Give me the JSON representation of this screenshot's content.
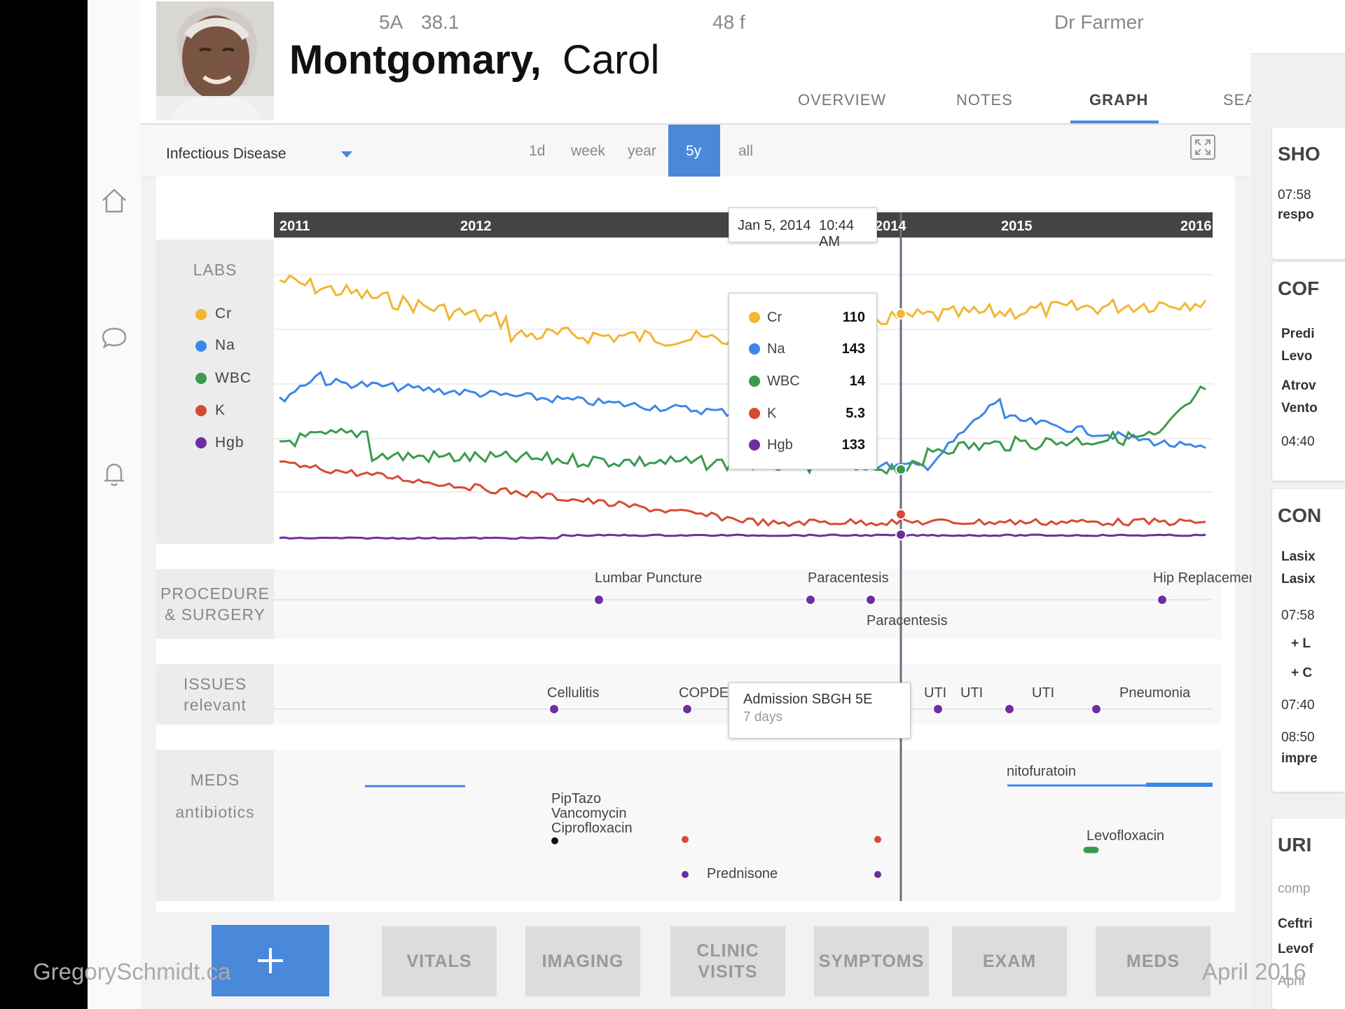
{
  "header": {
    "room": "5A",
    "temp": "38.1",
    "age_sex": "48 f",
    "doctor": "Dr Farmer",
    "last_name": "Montgomary,",
    "first_name": "Carol",
    "tabs": [
      "OVERVIEW",
      "NOTES",
      "GRAPH",
      "SEARCH"
    ],
    "active_tab": "GRAPH"
  },
  "toolbar": {
    "category": "Infectious Disease",
    "ranges": [
      "1d",
      "week",
      "year",
      "5y",
      "all"
    ],
    "active_range": "5y"
  },
  "timeline": {
    "years": [
      "2011",
      "2012",
      "2014",
      "2015",
      "2016"
    ],
    "cursor_label_date": "Jan 5, 2014",
    "cursor_label_time": "10:44 AM"
  },
  "labs": {
    "label": "LABS",
    "legend": [
      {
        "name": "Cr",
        "color": "#f2b632"
      },
      {
        "name": "Na",
        "color": "#3c86e8"
      },
      {
        "name": "WBC",
        "color": "#3a9a4d"
      },
      {
        "name": "K",
        "color": "#d64a32"
      },
      {
        "name": "Hgb",
        "color": "#6f2ea0"
      }
    ],
    "tooltip": [
      {
        "name": "Cr",
        "value": "110"
      },
      {
        "name": "Na",
        "value": "143"
      },
      {
        "name": "WBC",
        "value": "14"
      },
      {
        "name": "K",
        "value": "5.3"
      },
      {
        "name": "Hgb",
        "value": "133"
      }
    ]
  },
  "procedures": {
    "label_line1": "PROCEDURE",
    "label_line2": "& SURGERY",
    "events": [
      "Lumbar Puncture",
      "Paracentesis",
      "Paracentesis",
      "Hip Replacement"
    ]
  },
  "issues": {
    "label_line1": "ISSUES",
    "label_line2": "relevant",
    "events": [
      "Cellulitis",
      "COPDE",
      "UTI",
      "UTI",
      "UTI",
      "Pneumonia"
    ],
    "tooltip_title": "Admission SBGH  5E",
    "tooltip_sub": "7 days"
  },
  "meds": {
    "label_line1": "MEDS",
    "label_line2": "antibiotics",
    "combo": [
      "PipTazo",
      "Vancomycin",
      "Ciprofloxacin"
    ],
    "nitofuratoin": "nitofuratoin",
    "levofloxacin": "Levofloxacin",
    "prednisone": "Prednisone"
  },
  "bottom_buttons": [
    "VITALS",
    "IMAGING",
    "CLINIC VISITS",
    "SYMPTOMS",
    "EXAM",
    "MEDS"
  ],
  "right_panel": {
    "card1": {
      "title": "SHO",
      "lines": [
        "07:58",
        "respo"
      ]
    },
    "card2": {
      "title": "COF",
      "lines": [
        "Predi",
        "Levo",
        "Atrov",
        "Vento",
        "04:40"
      ]
    },
    "card3": {
      "title": "CON",
      "lines": [
        "Lasix",
        "Lasix",
        "07:58",
        "+ L",
        "+ C",
        "07:40",
        "08:50",
        "impre"
      ]
    },
    "card4": {
      "title": "URI",
      "lines": [
        "comp",
        "Ceftri",
        "Levof",
        "April"
      ]
    }
  },
  "footer": {
    "watermark": "GregorySchmidt.ca",
    "date": "April 2016"
  }
}
